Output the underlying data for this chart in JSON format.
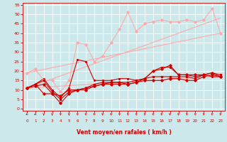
{
  "background_color": "#cce8ea",
  "grid_color": "#ffffff",
  "xlabel": "Vent moyen/en rafales ( km/h )",
  "xlabel_color": "#cc0000",
  "tick_color": "#cc0000",
  "xlim": [
    -0.5,
    23.5
  ],
  "ylim": [
    -1,
    56
  ],
  "yticks": [
    0,
    5,
    10,
    15,
    20,
    25,
    30,
    35,
    40,
    45,
    50,
    55
  ],
  "xticks": [
    0,
    1,
    2,
    3,
    4,
    5,
    6,
    7,
    8,
    9,
    10,
    11,
    12,
    13,
    14,
    15,
    16,
    17,
    18,
    19,
    20,
    21,
    22,
    23
  ],
  "series": [
    {
      "x": [
        0,
        1,
        2,
        3,
        4,
        5,
        6,
        7,
        8,
        9,
        10,
        11,
        12,
        13,
        14,
        15,
        16,
        17,
        18,
        19,
        20,
        21,
        22,
        23
      ],
      "y": [
        11,
        12,
        13,
        8,
        3,
        8,
        10,
        10,
        12,
        13,
        13,
        13,
        13,
        14,
        15,
        15,
        15,
        16,
        16,
        15,
        15,
        17,
        18,
        17
      ],
      "color": "#cc0000",
      "lw": 0.8,
      "marker": "D",
      "ms": 1.8,
      "zorder": 5
    },
    {
      "x": [
        0,
        1,
        2,
        3,
        4,
        5,
        6,
        7,
        8,
        9,
        10,
        11,
        12,
        13,
        14,
        15,
        16,
        17,
        18,
        19,
        20,
        21,
        22,
        23
      ],
      "y": [
        11,
        13,
        15,
        9,
        5,
        9,
        10,
        11,
        13,
        14,
        14,
        14,
        14,
        15,
        16,
        17,
        17,
        17,
        17,
        17,
        16,
        18,
        19,
        18
      ],
      "color": "#cc0000",
      "lw": 0.8,
      "marker": "s",
      "ms": 1.8,
      "zorder": 4
    },
    {
      "x": [
        0,
        1,
        2,
        3,
        4,
        5,
        6,
        7,
        8,
        9,
        10,
        11,
        12,
        13,
        14,
        15,
        16,
        17,
        18,
        19,
        20,
        21,
        22,
        23
      ],
      "y": [
        11,
        13,
        8,
        8,
        7,
        10,
        10,
        11,
        12,
        13,
        14,
        14,
        13,
        14,
        16,
        20,
        21,
        23,
        18,
        18,
        18,
        18,
        19,
        17
      ],
      "color": "#cc0000",
      "lw": 0.8,
      "marker": "P",
      "ms": 2.2,
      "zorder": 4
    },
    {
      "x": [
        0,
        1,
        2,
        3,
        4,
        5,
        6,
        7,
        8,
        9,
        10,
        11,
        12,
        13,
        14,
        15,
        16,
        17,
        18,
        19,
        20,
        21,
        22,
        23
      ],
      "y": [
        11,
        13,
        16,
        10,
        6,
        11,
        26,
        25,
        15,
        15,
        15,
        16,
        16,
        15,
        16,
        20,
        22,
        22,
        18,
        18,
        17,
        18,
        17,
        17
      ],
      "color": "#cc0000",
      "lw": 0.8,
      "marker": ".",
      "ms": 2.5,
      "zorder": 3
    },
    {
      "x": [
        0,
        1,
        2,
        3,
        4,
        5,
        6,
        7,
        8,
        9,
        10,
        11,
        12,
        13,
        14,
        15,
        16,
        17,
        18,
        19,
        20,
        21,
        22,
        23
      ],
      "y": [
        19,
        21,
        15,
        15,
        9,
        15,
        35,
        34,
        25,
        28,
        35,
        42,
        51,
        41,
        45,
        46,
        47,
        46,
        46,
        47,
        46,
        47,
        53,
        40
      ],
      "color": "#ffaaaa",
      "lw": 0.8,
      "marker": "D",
      "ms": 1.8,
      "zorder": 3
    },
    {
      "x": [
        0,
        23
      ],
      "y": [
        11,
        17
      ],
      "color": "#ffaaaa",
      "lw": 0.8,
      "marker": null,
      "ms": 0,
      "zorder": 2
    },
    {
      "x": [
        0,
        23
      ],
      "y": [
        19,
        40
      ],
      "color": "#ffaaaa",
      "lw": 0.8,
      "marker": null,
      "ms": 0,
      "zorder": 2
    },
    {
      "x": [
        0,
        23
      ],
      "y": [
        11,
        48
      ],
      "color": "#ffaaaa",
      "lw": 0.8,
      "marker": null,
      "ms": 0,
      "zorder": 2
    }
  ],
  "wind_angles": [
    225,
    225,
    180,
    180,
    315,
    180,
    315,
    315,
    315,
    315,
    315,
    315,
    315,
    315,
    315,
    315,
    315,
    315,
    315,
    315,
    315,
    315,
    315,
    315
  ],
  "xtick_labels": [
    "0",
    "1",
    "2",
    "3",
    "4",
    "5",
    "6",
    "7",
    "8",
    "9",
    "10",
    "11",
    "12",
    "13",
    "14",
    "15",
    "16",
    "17",
    "18",
    "19",
    "20",
    "21",
    "22",
    "23"
  ]
}
